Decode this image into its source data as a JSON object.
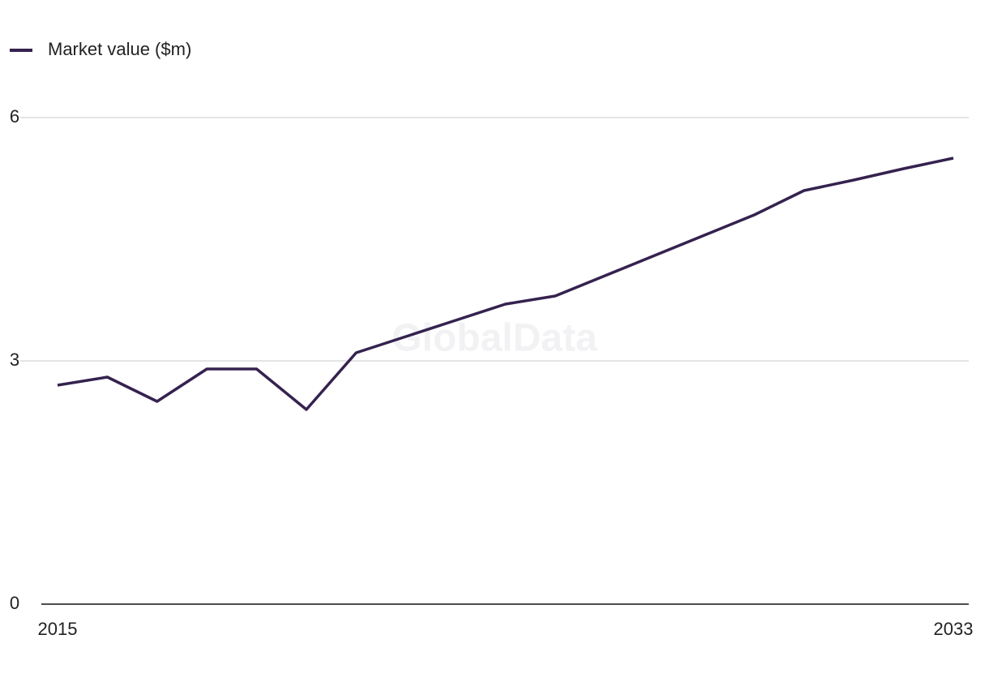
{
  "chart_data": {
    "type": "line",
    "watermark": "GlobalData",
    "x": [
      2015,
      2016,
      2017,
      2018,
      2019,
      2020,
      2021,
      2022,
      2023,
      2024,
      2025,
      2026,
      2027,
      2028,
      2029,
      2030,
      2031,
      2032,
      2033
    ],
    "series": [
      {
        "name": "Market value ($m)",
        "color": "#35224f",
        "values": [
          2.7,
          2.8,
          2.5,
          2.9,
          2.9,
          2.4,
          3.1,
          3.3,
          3.5,
          3.7,
          3.8,
          4.05,
          4.3,
          4.55,
          4.8,
          5.1,
          5.23,
          5.37,
          5.5
        ]
      }
    ],
    "xlim": [
      2015,
      2033
    ],
    "xticks": [
      2015,
      2033
    ],
    "ylim": [
      0,
      6
    ],
    "yticks": [
      0,
      3,
      6
    ],
    "grid": true,
    "legend": "top-left"
  }
}
